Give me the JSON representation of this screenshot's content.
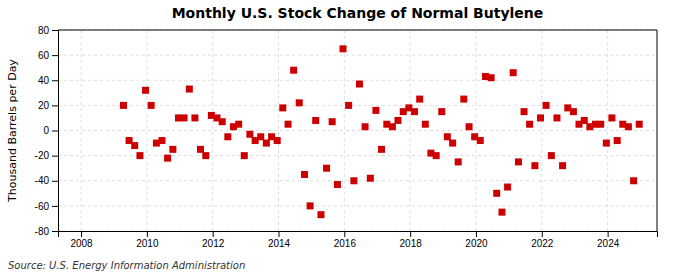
{
  "chart_data": {
    "type": "scatter",
    "title": "Monthly U.S. Stock Change of Normal Butylene",
    "ylabel": "Thousand Barrels per Day",
    "annotations": [
      "Source: U.S. Energy Information Administration"
    ],
    "color": "#cc0000",
    "marker": "square",
    "grid": true,
    "xlim": [
      2007.3,
      2025.5
    ],
    "xticks": [
      2008,
      2010,
      2012,
      2014,
      2016,
      2018,
      2020,
      2022,
      2024
    ],
    "ylim": [
      -80,
      80
    ],
    "yticks": [
      -80,
      -60,
      -40,
      -20,
      0,
      20,
      40,
      60,
      80
    ],
    "x": [
      2009.29,
      2009.46,
      2009.63,
      2009.79,
      2009.96,
      2010.13,
      2010.29,
      2010.46,
      2010.63,
      2010.79,
      2010.96,
      2011.13,
      2011.29,
      2011.46,
      2011.63,
      2011.79,
      2011.96,
      2012.13,
      2012.29,
      2012.46,
      2012.63,
      2012.79,
      2012.96,
      2013.13,
      2013.29,
      2013.46,
      2013.63,
      2013.79,
      2013.96,
      2014.13,
      2014.29,
      2014.46,
      2014.63,
      2014.79,
      2014.96,
      2015.13,
      2015.29,
      2015.46,
      2015.63,
      2015.79,
      2015.96,
      2016.13,
      2016.29,
      2016.46,
      2016.63,
      2016.79,
      2016.96,
      2017.13,
      2017.29,
      2017.46,
      2017.63,
      2017.79,
      2017.96,
      2018.13,
      2018.29,
      2018.46,
      2018.63,
      2018.79,
      2018.96,
      2019.13,
      2019.29,
      2019.46,
      2019.63,
      2019.79,
      2019.96,
      2020.13,
      2020.29,
      2020.46,
      2020.63,
      2020.79,
      2020.96,
      2021.13,
      2021.29,
      2021.46,
      2021.63,
      2021.79,
      2021.96,
      2022.13,
      2022.29,
      2022.46,
      2022.63,
      2022.79,
      2022.96,
      2023.13,
      2023.29,
      2023.46,
      2023.63,
      2023.79,
      2023.96,
      2024.13,
      2024.29,
      2024.46,
      2024.63,
      2024.79,
      2024.96
    ],
    "values": [
      20,
      -8,
      -12,
      -20,
      32,
      20,
      -10,
      -8,
      -22,
      -15,
      10,
      10,
      33,
      10,
      -15,
      -20,
      12,
      10,
      7,
      -5,
      3,
      5,
      -20,
      -3,
      -8,
      -5,
      -10,
      -5,
      -8,
      18,
      5,
      48,
      22,
      -35,
      -60,
      8,
      -67,
      -30,
      7,
      -43,
      65,
      20,
      -40,
      37,
      3,
      -38,
      16,
      -15,
      5,
      3,
      8,
      15,
      18,
      15,
      25,
      5,
      -18,
      -20,
      15,
      -5,
      -10,
      -25,
      25,
      3,
      -5,
      -8,
      43,
      42,
      -50,
      -65,
      -45,
      46,
      -25,
      15,
      5,
      -28,
      10,
      20,
      -20,
      10,
      -28,
      18,
      15,
      5,
      8,
      3,
      5,
      5,
      -10,
      10,
      -8,
      5,
      3,
      -40,
      5
    ]
  }
}
